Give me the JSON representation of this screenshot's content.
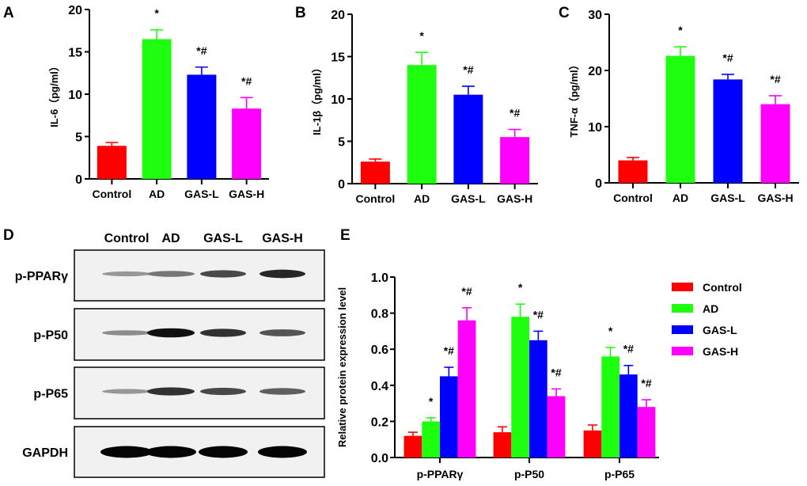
{
  "colors": {
    "Control": "#ff0000",
    "AD": "#1eff0f",
    "GAS-L": "#0000ff",
    "GAS-H": "#ff00ff"
  },
  "chart_data": [
    {
      "panel": "A",
      "type": "bar",
      "categories": [
        "Control",
        "AD",
        "GAS-L",
        "GAS-H"
      ],
      "values": [
        3.9,
        16.5,
        12.3,
        8.3
      ],
      "errors": [
        0.4,
        1.1,
        0.9,
        1.3
      ],
      "annotations": [
        "",
        "*",
        "*#",
        "*#"
      ],
      "ylabel": "IL-6（pg/ml）",
      "ylim": [
        0,
        20
      ],
      "yticks": [
        0,
        5,
        10,
        15,
        20
      ]
    },
    {
      "panel": "B",
      "type": "bar",
      "categories": [
        "Control",
        "AD",
        "GAS-L",
        "GAS-H"
      ],
      "values": [
        2.6,
        14.0,
        10.5,
        5.5
      ],
      "errors": [
        0.3,
        1.5,
        1.0,
        0.9
      ],
      "annotations": [
        "",
        "*",
        "*#",
        "*#"
      ],
      "ylabel": "IL-1β（pg/ml）",
      "ylim": [
        0,
        20
      ],
      "yticks": [
        0,
        5,
        10,
        15,
        20
      ]
    },
    {
      "panel": "C",
      "type": "bar",
      "categories": [
        "Control",
        "AD",
        "GAS-L",
        "GAS-H"
      ],
      "values": [
        4.0,
        22.6,
        18.4,
        14.0
      ],
      "errors": [
        0.5,
        1.6,
        0.9,
        1.5
      ],
      "annotations": [
        "",
        "*",
        "*#",
        "*#"
      ],
      "ylabel": "TNF-α（pg/ml）",
      "ylim": [
        0,
        30
      ],
      "yticks": [
        0,
        10,
        20,
        30
      ]
    },
    {
      "panel": "E",
      "type": "bar",
      "categories": [
        "p-PPARγ",
        "p-P50",
        "p-P65"
      ],
      "series": [
        {
          "name": "Control",
          "values": [
            0.12,
            0.14,
            0.15
          ],
          "errors": [
            0.02,
            0.03,
            0.03
          ],
          "annotations": [
            "",
            "",
            ""
          ]
        },
        {
          "name": "AD",
          "values": [
            0.2,
            0.78,
            0.56
          ],
          "errors": [
            0.02,
            0.07,
            0.05
          ],
          "annotations": [
            "*",
            "*",
            "*"
          ]
        },
        {
          "name": "GAS-L",
          "values": [
            0.45,
            0.65,
            0.46
          ],
          "errors": [
            0.05,
            0.05,
            0.05
          ],
          "annotations": [
            "*#",
            "*#",
            "*#"
          ]
        },
        {
          "name": "GAS-H",
          "values": [
            0.76,
            0.34,
            0.28
          ],
          "errors": [
            0.07,
            0.04,
            0.04
          ],
          "annotations": [
            "*#",
            "*#",
            "*#"
          ]
        }
      ],
      "ylabel": "Relative protein expression level",
      "ylim": [
        0,
        1.0
      ],
      "yticks": [
        "0.0",
        "0.2",
        "0.4",
        "0.6",
        "0.8",
        "1.0"
      ],
      "legend": [
        "Control",
        "AD",
        "GAS-L",
        "GAS-H"
      ],
      "legend_position": "right"
    }
  ],
  "blot": {
    "panel": "D",
    "lanes": [
      "Control",
      "AD",
      "GAS-L",
      "GAS-H"
    ],
    "rows": [
      {
        "label": "p-PPARγ",
        "intensity": [
          0.35,
          0.5,
          0.7,
          0.85
        ]
      },
      {
        "label": "p-P50",
        "intensity": [
          0.4,
          0.95,
          0.8,
          0.65
        ]
      },
      {
        "label": "p-P65",
        "intensity": [
          0.35,
          0.8,
          0.7,
          0.6
        ]
      },
      {
        "label": "GAPDH",
        "intensity": [
          1.0,
          1.0,
          1.0,
          1.0
        ]
      }
    ]
  }
}
